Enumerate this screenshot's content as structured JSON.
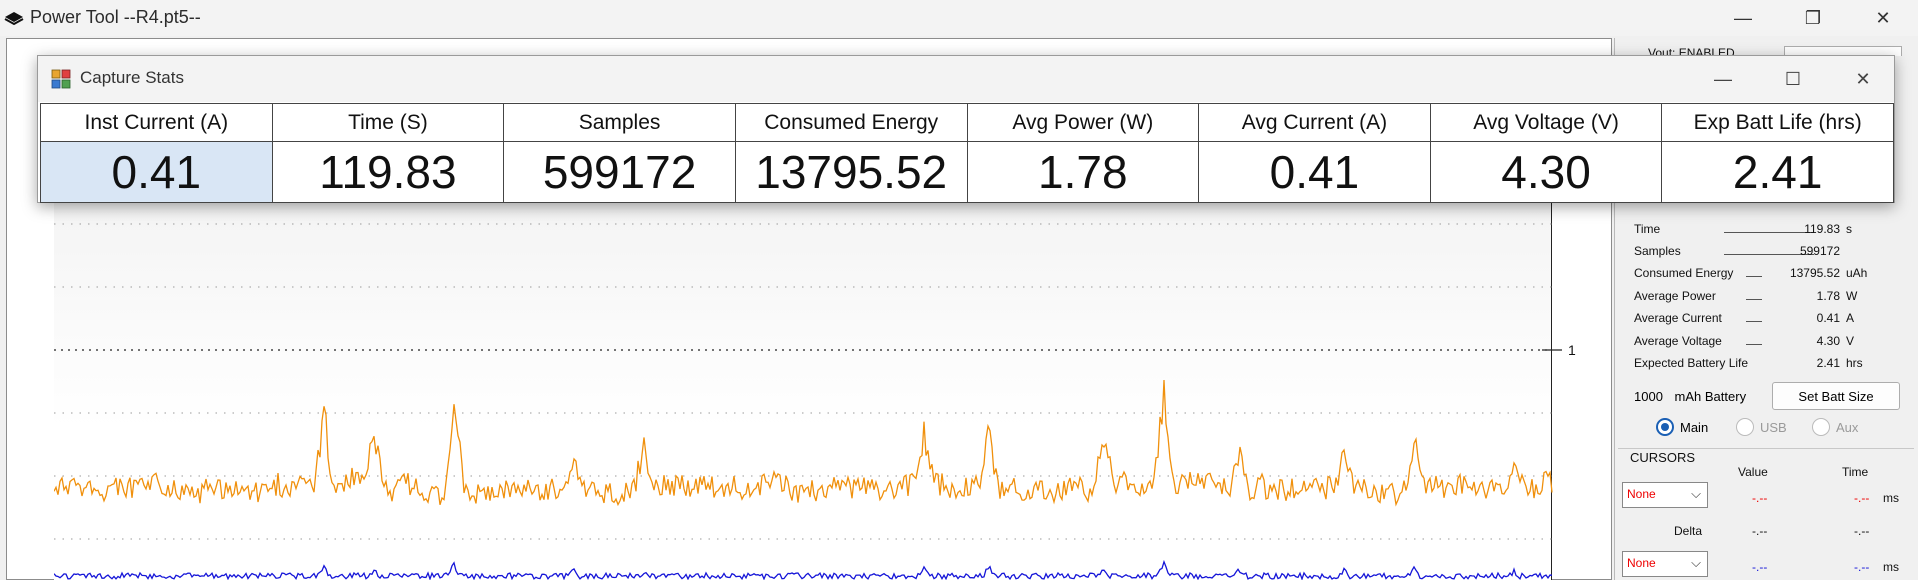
{
  "window": {
    "title": "Power Tool --R4.pt5--"
  },
  "dialog": {
    "title": "Capture Stats",
    "headers": [
      "Inst Current (A)",
      "Time (S)",
      "Samples",
      "Consumed Energy",
      "Avg Power (W)",
      "Avg Current (A)",
      "Avg Voltage (V)",
      "Exp Batt Life (hrs)"
    ],
    "values": [
      "0.41",
      "119.83",
      "599172",
      "13795.52",
      "1.78",
      "0.41",
      "4.30",
      "2.41"
    ]
  },
  "plot": {
    "y_tick_label": "1",
    "current_color": "#f0900c",
    "voltage_color": "#1515d8"
  },
  "stats_panel": {
    "top_partial": "Vout: ENABLED",
    "rows": [
      {
        "label": "Time",
        "value": "119.83",
        "unit": "s"
      },
      {
        "label": "Samples",
        "value": "599172",
        "unit": ""
      },
      {
        "label": "Consumed Energy",
        "value": "13795.52",
        "unit": "uAh"
      },
      {
        "label": "Average Power",
        "value": "1.78",
        "unit": "W"
      },
      {
        "label": "Average Current",
        "value": "0.41",
        "unit": "A"
      },
      {
        "label": "Average Voltage",
        "value": "4.30",
        "unit": "V"
      },
      {
        "label": "Expected Battery Life",
        "value": "2.41",
        "unit": "hrs"
      }
    ],
    "battery_capacity": "1000",
    "battery_unit": "mAh Battery",
    "set_batt_button": "Set Batt Size",
    "radios": [
      {
        "label": "Main",
        "selected": true
      },
      {
        "label": "USB",
        "selected": false
      },
      {
        "label": "Aux",
        "selected": false
      }
    ]
  },
  "cursors": {
    "title": "CURSORS",
    "col_value": "Value",
    "col_time": "Time",
    "cursor1": {
      "selection": "None",
      "value": "-.--",
      "time": "-.--",
      "unit": "ms"
    },
    "delta": {
      "label": "Delta",
      "value": "-.--",
      "time": "-.--"
    },
    "cursor2": {
      "selection": "None",
      "value": "-.--",
      "time": "-.--",
      "unit": "ms"
    }
  }
}
